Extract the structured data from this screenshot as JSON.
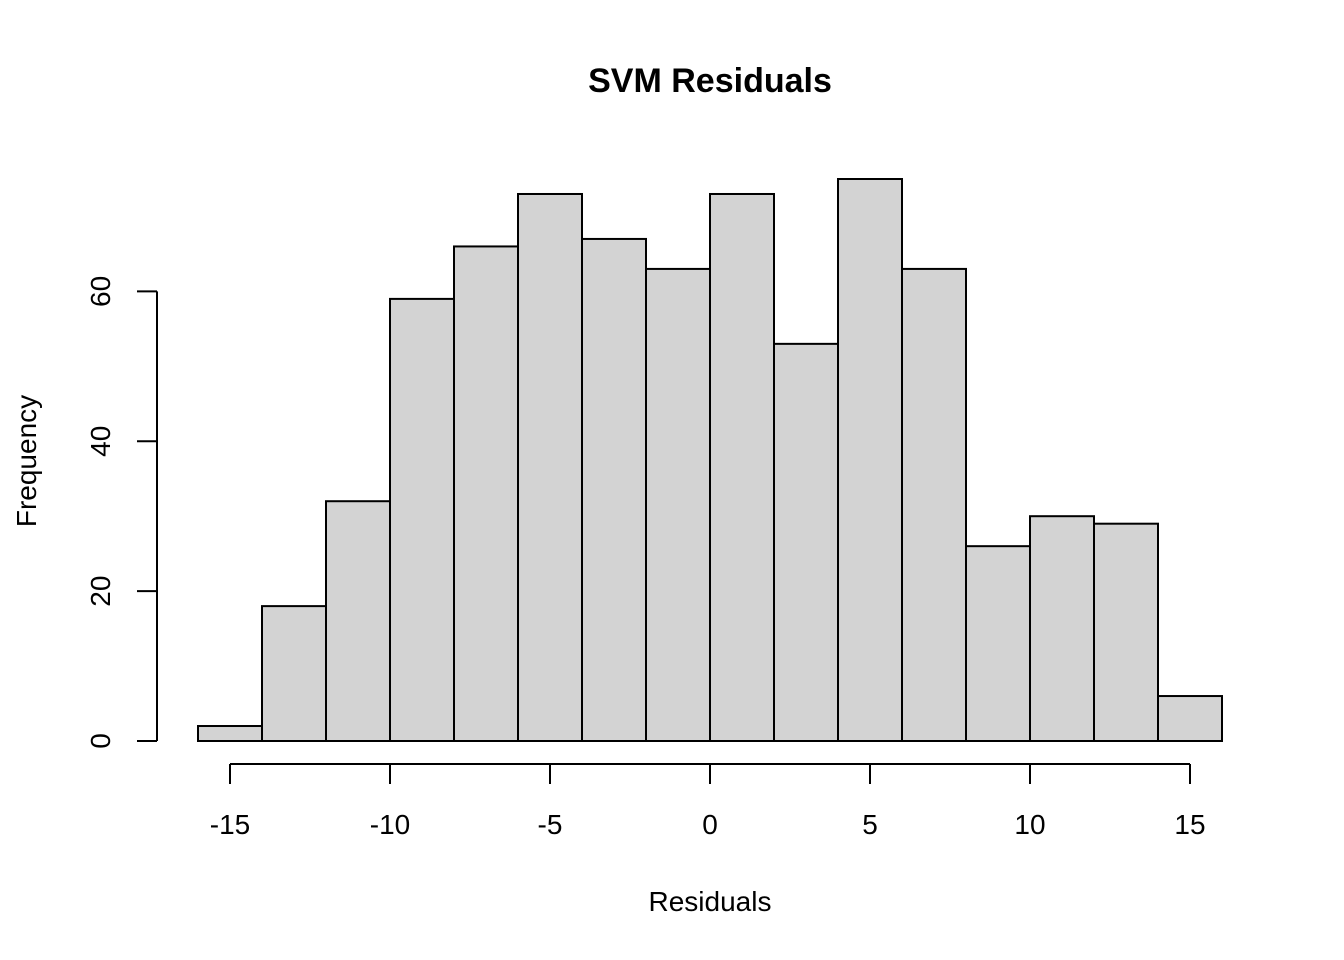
{
  "chart_data": {
    "type": "bar",
    "title": "SVM Residuals",
    "xlabel": "Residuals",
    "ylabel": "Frequency",
    "bins": [
      {
        "x0": -16,
        "x1": -14,
        "count": 2
      },
      {
        "x0": -14,
        "x1": -12,
        "count": 18
      },
      {
        "x0": -12,
        "x1": -10,
        "count": 32
      },
      {
        "x0": -10,
        "x1": -8,
        "count": 59
      },
      {
        "x0": -8,
        "x1": -6,
        "count": 66
      },
      {
        "x0": -6,
        "x1": -4,
        "count": 73
      },
      {
        "x0": -4,
        "x1": -2,
        "count": 67
      },
      {
        "x0": -2,
        "x1": 0,
        "count": 63
      },
      {
        "x0": 0,
        "x1": 2,
        "count": 73
      },
      {
        "x0": 2,
        "x1": 4,
        "count": 53
      },
      {
        "x0": 4,
        "x1": 6,
        "count": 75
      },
      {
        "x0": 6,
        "x1": 8,
        "count": 63
      },
      {
        "x0": 8,
        "x1": 10,
        "count": 26
      },
      {
        "x0": 10,
        "x1": 12,
        "count": 30
      },
      {
        "x0": 12,
        "x1": 14,
        "count": 29
      },
      {
        "x0": 14,
        "x1": 16,
        "count": 6
      }
    ],
    "x_ticks": [
      {
        "value": -15,
        "label": "-15"
      },
      {
        "value": -10,
        "label": "-10"
      },
      {
        "value": -5,
        "label": "-5"
      },
      {
        "value": 0,
        "label": "0"
      },
      {
        "value": 5,
        "label": "5"
      },
      {
        "value": 10,
        "label": "10"
      },
      {
        "value": 15,
        "label": "15"
      }
    ],
    "y_ticks": [
      {
        "value": 0,
        "label": "0"
      },
      {
        "value": 20,
        "label": "20"
      },
      {
        "value": 40,
        "label": "40"
      },
      {
        "value": 60,
        "label": "60"
      }
    ],
    "xlim": [
      -16,
      16
    ],
    "ylim": [
      0,
      75
    ],
    "grid": false,
    "legend": "none",
    "bar_fill": "#d3d3d3",
    "bar_stroke": "#000000"
  }
}
